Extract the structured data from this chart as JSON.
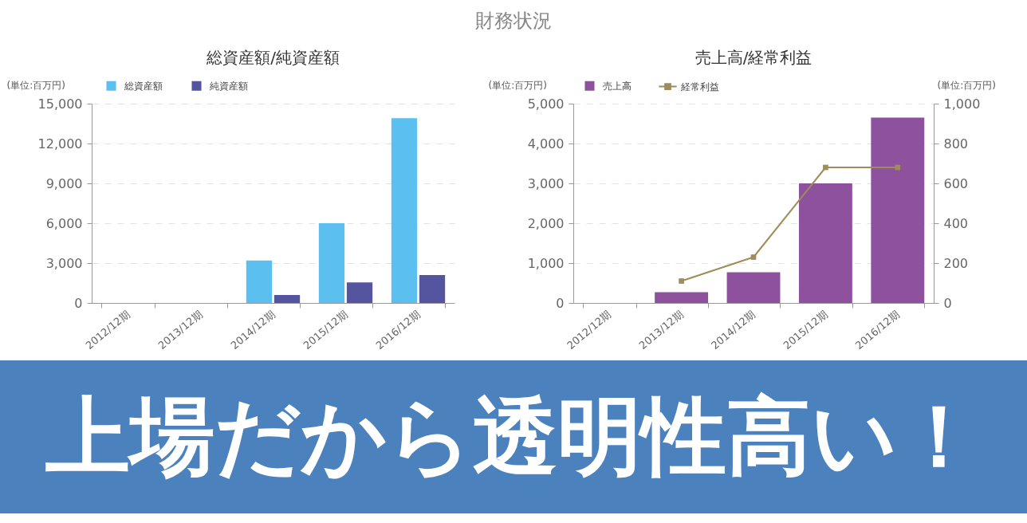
{
  "chart_data": [
    {
      "type": "other",
      "title": "財務状況",
      "annotations": [
        "上場だから透明性高い！"
      ]
    },
    {
      "type": "bar",
      "title": "総資産額/純資産額",
      "ylabel": "(単位:百万円)",
      "categories": [
        "2012/12期",
        "2013/12期",
        "2014/12期",
        "2015/12期",
        "2016/12期"
      ],
      "series": [
        {
          "name": "総資産額",
          "color": "#5bbfef",
          "values": [
            null,
            null,
            3200,
            6000,
            13900
          ]
        },
        {
          "name": "純資産額",
          "color": "#55559f",
          "values": [
            null,
            null,
            600,
            1550,
            2100
          ]
        }
      ],
      "ylim": [
        0,
        15000
      ],
      "yticks": [
        0,
        {
          "value": 3000,
          "label": "3,000"
        },
        {
          "value": 6000,
          "label": "6,000"
        },
        {
          "value": 9000,
          "label": "9,000"
        },
        {
          "value": 12000,
          "label": "12,000"
        },
        {
          "value": 15000,
          "label": "15,000"
        }
      ],
      "grid": "y",
      "legend": "top"
    },
    {
      "type": "bar",
      "title": "売上高/経常利益",
      "ylabel": "(単位:百万円)",
      "y2label": "(単位:百万円)",
      "categories": [
        "2012/12期",
        "2013/12期",
        "2014/12期",
        "2015/12期",
        "2016/12期"
      ],
      "series": [
        {
          "name": "売上高",
          "type": "bar",
          "color": "#8d519d",
          "values": [
            null,
            270,
            770,
            3000,
            4650
          ]
        },
        {
          "name": "経常利益",
          "type": "line",
          "axis": "y2",
          "color": "#a08b5b",
          "values": [
            null,
            110,
            230,
            680,
            680
          ]
        }
      ],
      "ylim": [
        0,
        5000
      ],
      "yticks": [
        0,
        {
          "value": 1000,
          "label": "1,000"
        },
        {
          "value": 2000,
          "label": "2,000"
        },
        {
          "value": 3000,
          "label": "3,000"
        },
        {
          "value": 4000,
          "label": "4,000"
        },
        {
          "value": 5000,
          "label": "5,000"
        }
      ],
      "y2lim": [
        0,
        1000
      ],
      "y2ticks": [
        0,
        200,
        400,
        600,
        800,
        {
          "value": 1000,
          "label": "1,000"
        }
      ],
      "grid": "y",
      "legend": "top",
      "marker": "square"
    }
  ]
}
